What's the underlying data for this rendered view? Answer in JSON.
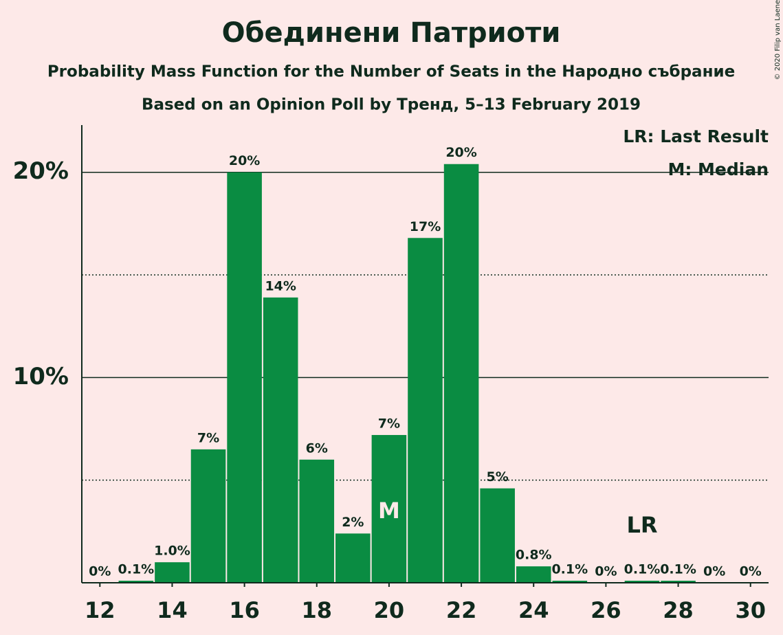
{
  "chart_data": {
    "type": "bar",
    "title": "Обединени Патриоти",
    "subtitle": "Probability Mass Function for the Number of Seats in the Народно събрание",
    "subtitle2": "Based on an Opinion Poll by Тренд, 5–13 February 2019",
    "copyright": "© 2020 Filip van Laenen",
    "x": [
      12,
      13,
      14,
      15,
      16,
      17,
      18,
      19,
      20,
      21,
      22,
      23,
      24,
      25,
      26,
      27,
      28,
      29,
      30
    ],
    "values": [
      0,
      0.1,
      1.0,
      6.5,
      20.0,
      13.9,
      6.0,
      2.4,
      7.2,
      16.8,
      20.4,
      4.6,
      0.8,
      0.1,
      0,
      0.1,
      0.1,
      0,
      0
    ],
    "value_labels": [
      "0%",
      "0.1%",
      "1.0%",
      "7%",
      "20%",
      "14%",
      "6%",
      "2%",
      "7%",
      "17%",
      "20%",
      "5%",
      "0.8%",
      "0.1%",
      "0%",
      "0.1%",
      "0.1%",
      "0%",
      "0%"
    ],
    "color": "#0a8c42",
    "xlim": [
      11.5,
      30.5
    ],
    "xticks": [
      12,
      14,
      16,
      18,
      20,
      22,
      24,
      26,
      28,
      30
    ],
    "ylim": [
      0,
      22.3
    ],
    "yticks": [
      {
        "value": 10,
        "label": "10%"
      },
      {
        "value": 20,
        "label": "20%"
      }
    ],
    "minor_yticks": [
      5,
      15
    ],
    "grid": true,
    "median": {
      "x": 20,
      "label": "M"
    },
    "last_result": {
      "x": 27,
      "label": "LR"
    },
    "legend": [
      "LR: Last Result",
      "M: Median"
    ]
  }
}
